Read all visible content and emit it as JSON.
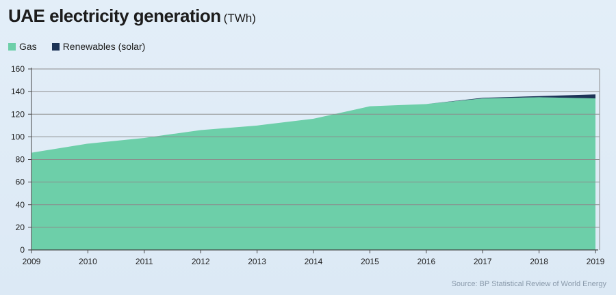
{
  "chart_data": {
    "type": "area",
    "title": "UAE electricity generation",
    "unit": "(TWh)",
    "x": [
      2009,
      2010,
      2011,
      2012,
      2013,
      2014,
      2015,
      2016,
      2017,
      2018,
      2019
    ],
    "series": [
      {
        "name": "Gas",
        "color": "#6dcfa9",
        "values": [
          86,
          94,
          99,
          106,
          110,
          116,
          127,
          129,
          134,
          135,
          134
        ]
      },
      {
        "name": "Renewables (solar)",
        "color": "#1c3356",
        "values": [
          0,
          0,
          0,
          0,
          0,
          0,
          0,
          0,
          0.5,
          1,
          3.5
        ]
      }
    ],
    "stacked": true,
    "ylim": [
      0,
      160
    ],
    "yticks": [
      0,
      20,
      40,
      60,
      80,
      100,
      120,
      140,
      160
    ],
    "grid": true,
    "legend_position": "top-left",
    "source": "Source: BP Statistical Review of World Energy"
  }
}
